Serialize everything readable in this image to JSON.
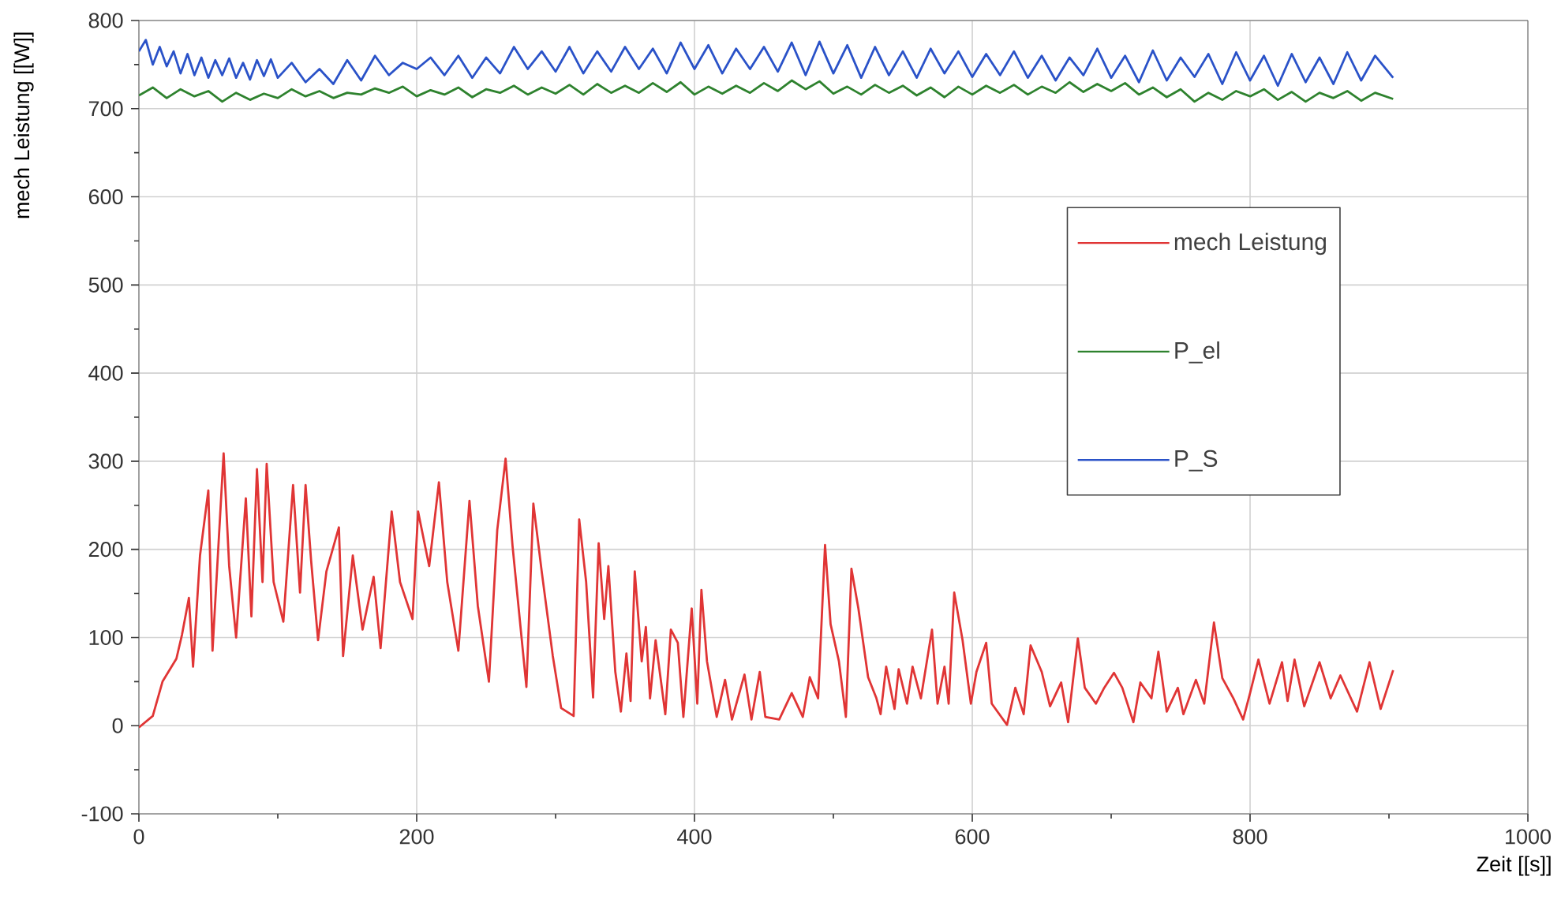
{
  "chart_data": {
    "type": "line",
    "xlabel": "Zeit [[s]]",
    "ylabel": "mech Leistung [[W]]",
    "xlim": [
      0,
      1000
    ],
    "ylim": [
      -100,
      800
    ],
    "xticks": [
      0,
      200,
      400,
      600,
      800,
      1000
    ],
    "yticks": [
      -100,
      0,
      100,
      200,
      300,
      400,
      500,
      600,
      700,
      800
    ],
    "grid": true,
    "legend": "right",
    "marker": "none",
    "line_style": "solid",
    "series": [
      {
        "name": "mech Leistung",
        "color": "#e03535",
        "x": [
          0,
          10,
          17,
          27,
          31,
          36,
          39,
          44,
          50,
          53,
          61,
          65,
          70,
          77,
          81,
          85,
          89,
          92,
          97,
          104,
          111,
          116,
          120,
          124,
          129,
          135,
          144,
          147,
          154,
          161,
          169,
          174,
          182,
          188,
          197,
          201,
          209,
          216,
          222,
          230,
          238,
          244,
          252,
          258,
          264,
          269,
          279,
          284,
          290,
          298,
          304,
          313,
          317,
          322,
          327,
          331,
          335,
          338,
          343,
          347,
          351,
          354,
          357,
          362,
          365,
          368,
          372,
          379,
          383,
          388,
          392,
          398,
          402,
          405,
          409,
          416,
          422,
          427,
          436,
          441,
          447,
          451,
          461,
          470,
          478,
          483,
          489,
          494,
          498,
          504,
          509,
          513,
          518,
          525,
          531,
          534,
          538,
          544,
          547,
          553,
          557,
          563,
          571,
          575,
          580,
          583,
          587,
          593,
          599,
          603,
          610,
          614,
          625,
          631,
          637,
          642,
          650,
          656,
          664,
          669,
          676,
          681,
          689,
          695,
          702,
          708,
          716,
          721,
          729,
          734,
          740,
          748,
          752,
          761,
          767,
          774,
          780,
          788,
          795,
          800,
          806,
          814,
          823,
          827,
          832,
          839,
          850,
          858,
          865,
          877,
          886,
          894,
          903
        ],
        "values": [
          -2,
          11,
          50,
          76,
          103,
          145,
          67,
          193,
          267,
          85,
          309,
          181,
          100,
          258,
          124,
          291,
          163,
          297,
          163,
          118,
          273,
          151,
          273,
          187,
          97,
          175,
          225,
          79,
          193,
          109,
          169,
          88,
          243,
          163,
          121,
          243,
          181,
          276,
          163,
          85,
          255,
          136,
          50,
          222,
          303,
          204,
          44,
          252,
          175,
          79,
          20,
          11,
          234,
          163,
          32,
          207,
          121,
          181,
          61,
          16,
          82,
          28,
          175,
          73,
          112,
          31,
          97,
          13,
          109,
          94,
          10,
          133,
          25,
          154,
          73,
          10,
          52,
          7,
          58,
          7,
          61,
          10,
          7,
          37,
          10,
          55,
          31,
          205,
          115,
          73,
          10,
          178,
          133,
          55,
          31,
          13,
          67,
          19,
          64,
          25,
          67,
          31,
          109,
          25,
          67,
          25,
          151,
          97,
          25,
          61,
          94,
          25,
          1,
          43,
          13,
          91,
          61,
          22,
          49,
          4,
          99,
          43,
          25,
          43,
          60,
          43,
          4,
          49,
          31,
          84,
          16,
          43,
          13,
          52,
          25,
          117,
          54,
          31,
          7,
          37,
          75,
          25,
          72,
          28,
          75,
          22,
          72,
          31,
          57,
          16,
          72,
          19,
          63
        ]
      },
      {
        "name": "P_el",
        "color": "#2e822e",
        "x": [
          0,
          10,
          20,
          30,
          40,
          50,
          60,
          70,
          80,
          90,
          100,
          110,
          120,
          130,
          140,
          150,
          160,
          170,
          180,
          190,
          200,
          210,
          220,
          230,
          240,
          250,
          260,
          270,
          280,
          290,
          300,
          310,
          320,
          330,
          340,
          350,
          360,
          370,
          380,
          390,
          400,
          410,
          420,
          430,
          440,
          450,
          460,
          470,
          480,
          490,
          500,
          510,
          520,
          530,
          540,
          550,
          560,
          570,
          580,
          590,
          600,
          610,
          620,
          630,
          640,
          650,
          660,
          670,
          680,
          690,
          700,
          710,
          720,
          730,
          740,
          750,
          760,
          770,
          780,
          790,
          800,
          810,
          820,
          830,
          840,
          850,
          860,
          870,
          880,
          890,
          903
        ],
        "values": [
          715,
          724,
          712,
          722,
          714,
          720,
          708,
          718,
          710,
          717,
          712,
          722,
          714,
          720,
          712,
          718,
          716,
          723,
          718,
          725,
          714,
          721,
          716,
          724,
          713,
          722,
          718,
          726,
          716,
          724,
          717,
          727,
          716,
          728,
          718,
          726,
          718,
          729,
          719,
          730,
          716,
          725,
          717,
          726,
          718,
          729,
          720,
          732,
          722,
          731,
          717,
          725,
          716,
          727,
          718,
          726,
          715,
          724,
          713,
          725,
          716,
          726,
          718,
          727,
          716,
          725,
          718,
          730,
          719,
          728,
          720,
          729,
          716,
          724,
          713,
          722,
          708,
          718,
          710,
          720,
          714,
          722,
          710,
          719,
          708,
          718,
          712,
          720,
          709,
          718,
          711
        ]
      },
      {
        "name": "P_S",
        "color": "#2a52c8",
        "x": [
          0,
          5,
          10,
          15,
          20,
          25,
          30,
          35,
          40,
          45,
          50,
          55,
          60,
          65,
          70,
          75,
          80,
          85,
          90,
          95,
          100,
          110,
          120,
          130,
          140,
          150,
          160,
          170,
          180,
          190,
          200,
          210,
          220,
          230,
          240,
          250,
          260,
          270,
          280,
          290,
          300,
          310,
          320,
          330,
          340,
          350,
          360,
          370,
          380,
          390,
          400,
          410,
          420,
          430,
          440,
          450,
          460,
          470,
          480,
          490,
          500,
          510,
          520,
          530,
          540,
          550,
          560,
          570,
          580,
          590,
          600,
          610,
          620,
          630,
          640,
          650,
          660,
          670,
          680,
          690,
          700,
          710,
          720,
          730,
          740,
          750,
          760,
          770,
          780,
          790,
          800,
          810,
          820,
          830,
          840,
          850,
          860,
          870,
          880,
          890,
          903
        ],
        "values": [
          765,
          778,
          750,
          770,
          748,
          765,
          740,
          762,
          738,
          758,
          735,
          755,
          738,
          757,
          735,
          752,
          733,
          755,
          737,
          756,
          735,
          752,
          730,
          745,
          728,
          755,
          732,
          760,
          738,
          752,
          745,
          758,
          738,
          760,
          735,
          758,
          740,
          770,
          745,
          765,
          742,
          770,
          740,
          765,
          742,
          770,
          745,
          768,
          740,
          775,
          745,
          772,
          740,
          768,
          745,
          770,
          742,
          775,
          738,
          776,
          740,
          772,
          735,
          770,
          738,
          765,
          735,
          768,
          740,
          765,
          736,
          762,
          738,
          765,
          735,
          760,
          732,
          758,
          738,
          768,
          735,
          760,
          730,
          766,
          732,
          758,
          736,
          762,
          728,
          764,
          732,
          760,
          726,
          762,
          730,
          758,
          728,
          764,
          732,
          760,
          735
        ]
      }
    ]
  }
}
